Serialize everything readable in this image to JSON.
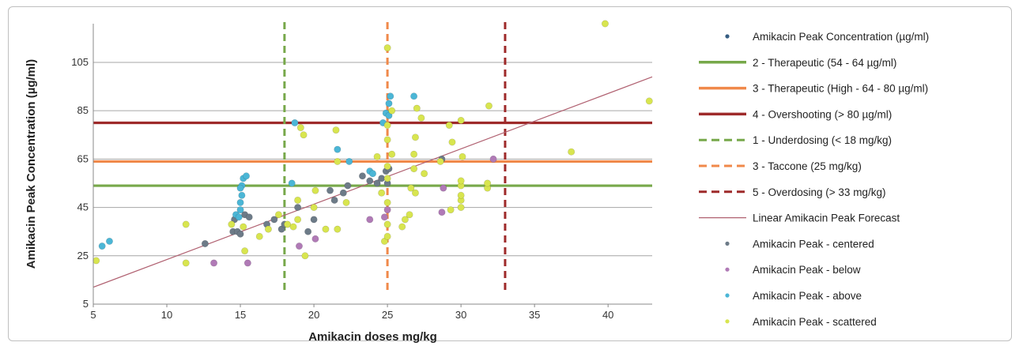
{
  "chart_data": {
    "type": "scatter",
    "xlabel": "Amikacin doses mg/kg",
    "ylabel": "Amikacin Peak Concentration (µg/ml)",
    "xlim": [
      5,
      43
    ],
    "ylim": [
      5,
      121
    ],
    "x_ticks": [
      "5",
      "10",
      "15",
      "20",
      "25",
      "30",
      "35",
      "40"
    ],
    "y_ticks": [
      "5",
      "25",
      "45",
      "65",
      "85",
      "105"
    ],
    "grid": "horizontal",
    "legend_position": "right",
    "colors": {
      "therapeutic": "#77a84a",
      "therapeutic_high": "#f0894a",
      "overshooting": "#9e2a2a",
      "underdosing": "#77a84a",
      "taccone": "#f0894a",
      "overdosing": "#9e2a2a",
      "forecast": "#b06070",
      "centered": "#6d7b88",
      "below": "#b07ab6",
      "above": "#4bb6d6",
      "scattered": "#d8e54f",
      "main_series": "#365d82"
    },
    "legend": [
      {
        "key": "main",
        "label": "Amikacin Peak Concentration (µg/ml)",
        "style": "dot"
      },
      {
        "key": "therapeutic",
        "label": "2 - Therapeutic (54 - 64 µg/ml)",
        "style": "solid"
      },
      {
        "key": "therapeutic_high",
        "label": "3 - Therapeutic (High - 64 - 80 µg/ml)",
        "style": "solid"
      },
      {
        "key": "overshooting",
        "label": "4 - Overshooting (> 80 µg/ml)",
        "style": "solid"
      },
      {
        "key": "underdosing",
        "label": "1 - Underdosing (< 18 mg/kg)",
        "style": "dashed"
      },
      {
        "key": "taccone",
        "label": "3 - Taccone (25 mg/kg)",
        "style": "dashed"
      },
      {
        "key": "overdosing",
        "label": "5 - Overdosing (> 33 mg/kg)",
        "style": "dashed"
      },
      {
        "key": "forecast",
        "label": "Linear Amikacin Peak Forecast",
        "style": "thin"
      },
      {
        "key": "centered",
        "label": "Amikacin Peak - centered",
        "style": "dot"
      },
      {
        "key": "below",
        "label": "Amikacin Peak - below",
        "style": "dot"
      },
      {
        "key": "above",
        "label": "Amikacin Peak - above",
        "style": "dot"
      },
      {
        "key": "scattered",
        "label": "Amikacin Peak - scattered",
        "style": "dot"
      }
    ],
    "hlines": [
      {
        "key": "therapeutic",
        "y": 54
      },
      {
        "key": "therapeutic_high",
        "y": 64
      },
      {
        "key": "overshooting",
        "y": 80
      }
    ],
    "vlines": [
      {
        "key": "underdosing",
        "x": 18
      },
      {
        "key": "taccone",
        "x": 25
      },
      {
        "key": "overdosing",
        "x": 33
      }
    ],
    "forecast_line": {
      "x": [
        5,
        43
      ],
      "y": [
        12,
        99
      ]
    },
    "series": [
      {
        "name": "Amikacin Peak - centered",
        "key": "centered",
        "points": [
          [
            12.6,
            30
          ],
          [
            14.5,
            35
          ],
          [
            14.6,
            40
          ],
          [
            14.8,
            35
          ],
          [
            15.0,
            34
          ],
          [
            15.3,
            42
          ],
          [
            15.6,
            41
          ],
          [
            16.8,
            38
          ],
          [
            17.3,
            40
          ],
          [
            17.8,
            36
          ],
          [
            18.0,
            38
          ],
          [
            18.9,
            45
          ],
          [
            19.6,
            35
          ],
          [
            20.0,
            40
          ],
          [
            21.1,
            52
          ],
          [
            21.4,
            48
          ],
          [
            22.0,
            51
          ],
          [
            22.3,
            54
          ],
          [
            23.3,
            58
          ],
          [
            23.8,
            56
          ],
          [
            24.3,
            55
          ],
          [
            24.6,
            57
          ],
          [
            24.9,
            60
          ],
          [
            25.0,
            55
          ],
          [
            25.1,
            61
          ],
          [
            28.7,
            65
          ]
        ]
      },
      {
        "name": "Amikacin Peak - below",
        "key": "below",
        "points": [
          [
            13.2,
            22
          ],
          [
            15.5,
            22
          ],
          [
            19.0,
            29
          ],
          [
            20.1,
            32
          ],
          [
            23.8,
            40
          ],
          [
            24.8,
            41
          ],
          [
            25.0,
            44
          ],
          [
            28.7,
            43
          ],
          [
            28.8,
            53
          ],
          [
            32.2,
            65
          ]
        ]
      },
      {
        "name": "Amikacin Peak - above",
        "key": "above",
        "points": [
          [
            5.6,
            29
          ],
          [
            6.1,
            31
          ],
          [
            14.7,
            42
          ],
          [
            14.9,
            41
          ],
          [
            15.0,
            44
          ],
          [
            15.0,
            47
          ],
          [
            15.1,
            50
          ],
          [
            15.1,
            54
          ],
          [
            15.2,
            57
          ],
          [
            15.4,
            58
          ],
          [
            15.0,
            53
          ],
          [
            18.5,
            55
          ],
          [
            18.7,
            80
          ],
          [
            21.6,
            69
          ],
          [
            22.4,
            64
          ],
          [
            23.8,
            60
          ],
          [
            24.0,
            59
          ],
          [
            24.7,
            80
          ],
          [
            24.9,
            84
          ],
          [
            25.1,
            83
          ],
          [
            25.1,
            88
          ],
          [
            25.2,
            91
          ],
          [
            26.8,
            91
          ]
        ]
      },
      {
        "name": "Amikacin Peak - scattered",
        "key": "scattered",
        "points": [
          [
            5.2,
            23
          ],
          [
            11.3,
            22
          ],
          [
            11.3,
            38
          ],
          [
            14.4,
            38
          ],
          [
            15.3,
            27
          ],
          [
            15.2,
            37
          ],
          [
            16.3,
            33
          ],
          [
            16.9,
            36
          ],
          [
            17.6,
            42
          ],
          [
            18.2,
            38
          ],
          [
            18.6,
            37
          ],
          [
            18.9,
            40
          ],
          [
            18.9,
            48
          ],
          [
            19.1,
            78
          ],
          [
            19.3,
            75
          ],
          [
            19.4,
            25
          ],
          [
            20.0,
            45
          ],
          [
            20.1,
            52
          ],
          [
            20.8,
            36
          ],
          [
            21.5,
            77
          ],
          [
            21.6,
            36
          ],
          [
            21.6,
            64
          ],
          [
            22.2,
            47
          ],
          [
            24.3,
            66
          ],
          [
            24.6,
            51
          ],
          [
            24.8,
            31
          ],
          [
            25.0,
            33
          ],
          [
            25.0,
            38
          ],
          [
            25.0,
            47
          ],
          [
            25.0,
            57
          ],
          [
            25.0,
            62
          ],
          [
            25.0,
            73
          ],
          [
            25.0,
            79
          ],
          [
            25.0,
            111
          ],
          [
            25.3,
            85
          ],
          [
            25.3,
            67
          ],
          [
            26.0,
            37
          ],
          [
            26.2,
            40
          ],
          [
            26.5,
            42
          ],
          [
            26.6,
            53
          ],
          [
            26.8,
            61
          ],
          [
            26.8,
            67
          ],
          [
            26.9,
            51
          ],
          [
            26.9,
            74
          ],
          [
            27.0,
            86
          ],
          [
            27.3,
            82
          ],
          [
            27.5,
            59
          ],
          [
            28.6,
            64
          ],
          [
            29.2,
            79
          ],
          [
            29.3,
            44
          ],
          [
            29.4,
            72
          ],
          [
            30.0,
            45
          ],
          [
            30.0,
            48
          ],
          [
            30.0,
            50
          ],
          [
            30.0,
            54
          ],
          [
            30.0,
            56
          ],
          [
            30.0,
            81
          ],
          [
            30.1,
            66
          ],
          [
            31.8,
            53
          ],
          [
            31.8,
            55
          ],
          [
            31.9,
            87
          ],
          [
            37.5,
            68
          ],
          [
            39.8,
            121
          ],
          [
            42.8,
            89
          ]
        ]
      }
    ]
  }
}
